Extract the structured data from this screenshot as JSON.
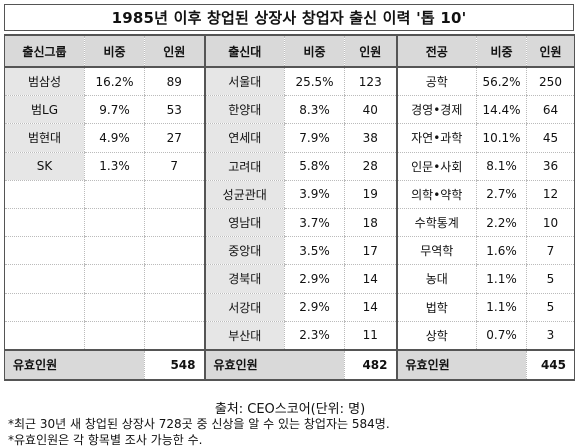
{
  "title": "1985년 이후 창업된 상장사 창업자 출신 이력 '톱 10'",
  "headers": {
    "g1": [
      "출신그룹",
      "비중",
      "인원"
    ],
    "g2": [
      "출신대",
      "비중",
      "인원"
    ],
    "g3": [
      "전공",
      "비중",
      "인원"
    ]
  },
  "rows": [
    {
      "a": [
        "범삼성",
        "16.2%",
        "89"
      ],
      "b": [
        "서울대",
        "25.5%",
        "123"
      ],
      "c": [
        "공학",
        "56.2%",
        "250"
      ]
    },
    {
      "a": [
        "범LG",
        "9.7%",
        "53"
      ],
      "b": [
        "한양대",
        "8.3%",
        "40"
      ],
      "c": [
        "경영•경제",
        "14.4%",
        "64"
      ]
    },
    {
      "a": [
        "범현대",
        "4.9%",
        "27"
      ],
      "b": [
        "연세대",
        "7.9%",
        "38"
      ],
      "c": [
        "자연•과학",
        "10.1%",
        "45"
      ]
    },
    {
      "a": [
        "SK",
        "1.3%",
        "7"
      ],
      "b": [
        "고려대",
        "5.8%",
        "28"
      ],
      "c": [
        "인문•사회",
        "8.1%",
        "36"
      ]
    },
    {
      "a": [
        "",
        "",
        ""
      ],
      "b": [
        "성균관대",
        "3.9%",
        "19"
      ],
      "c": [
        "의학•약학",
        "2.7%",
        "12"
      ]
    },
    {
      "a": [
        "",
        "",
        ""
      ],
      "b": [
        "영남대",
        "3.7%",
        "18"
      ],
      "c": [
        "수학통계",
        "2.2%",
        "10"
      ]
    },
    {
      "a": [
        "",
        "",
        ""
      ],
      "b": [
        "중앙대",
        "3.5%",
        "17"
      ],
      "c": [
        "무역학",
        "1.6%",
        "7"
      ]
    },
    {
      "a": [
        "",
        "",
        ""
      ],
      "b": [
        "경북대",
        "2.9%",
        "14"
      ],
      "c": [
        "농대",
        "1.1%",
        "5"
      ]
    },
    {
      "a": [
        "",
        "",
        ""
      ],
      "b": [
        "서강대",
        "2.9%",
        "14"
      ],
      "c": [
        "법학",
        "1.1%",
        "5"
      ]
    },
    {
      "a": [
        "",
        "",
        ""
      ],
      "b": [
        "부산대",
        "2.3%",
        "11"
      ],
      "c": [
        "상학",
        "0.7%",
        "3"
      ]
    }
  ],
  "totals": {
    "a_label": "유효인원",
    "a_value": "548",
    "b_label": "유효인원",
    "b_value": "482",
    "c_label": "유효인원",
    "c_value": "445"
  },
  "source": "출처: CEO스코어(단위: 명)",
  "notes": [
    "*최근 30년 새 창업된 상장사 728곳 중 신상을 알 수 있는 창업자는 584명.",
    "*유효인원은 각 항목별 조사 가능한 수."
  ]
}
